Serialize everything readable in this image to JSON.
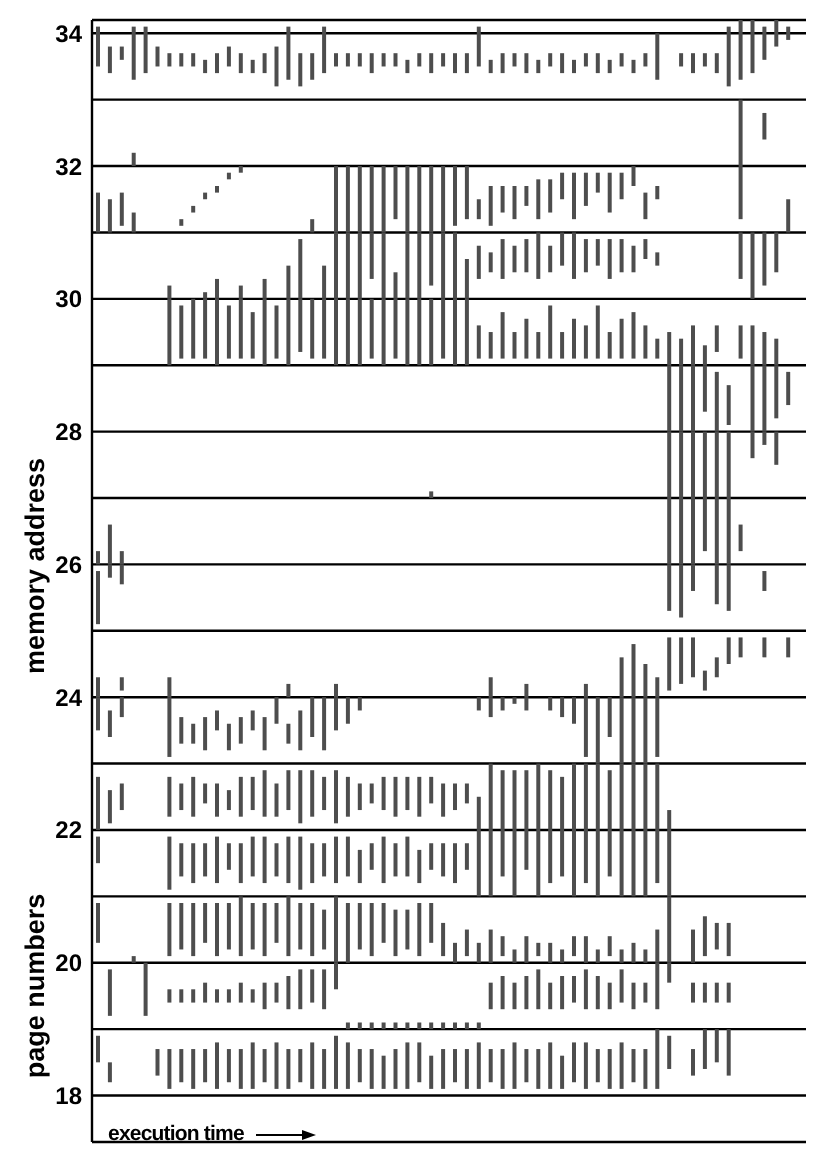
{
  "chart_data": {
    "type": "bar",
    "xlabel": "execution time",
    "ylabel": "memory address",
    "annotations": [
      "page numbers"
    ],
    "color": "#4d4d4d",
    "grid": "y",
    "tick_labels": "y",
    "ylim": [
      17.3,
      34.2
    ],
    "yticks": [
      18,
      {
        "value": 19,
        "label": null
      },
      20,
      {
        "value": 21,
        "label": null
      },
      22,
      {
        "value": 23,
        "label": null
      },
      24,
      {
        "value": 25,
        "label": null
      },
      26,
      {
        "value": 27,
        "label": null
      },
      28,
      {
        "value": 29,
        "label": null
      },
      30,
      {
        "value": 31,
        "label": null
      },
      32,
      {
        "value": 33,
        "label": null
      },
      34
    ],
    "categories": [
      null,
      null,
      null,
      null,
      null,
      null,
      null,
      null,
      null,
      null,
      null,
      null,
      null,
      null,
      null,
      null,
      null,
      null,
      null,
      null,
      null,
      null,
      null,
      null,
      null,
      null,
      null,
      null,
      null,
      null,
      null,
      null,
      null,
      null,
      null,
      null,
      null,
      null,
      null,
      null,
      null,
      null,
      null,
      null,
      null,
      null,
      null,
      null,
      null,
      null,
      null,
      null,
      null,
      null,
      null,
      null,
      null,
      null,
      null,
      null
    ],
    "series": [
      {
        "base": [
          33.5,
          33.4,
          33.6,
          33.3,
          33.4,
          33.5,
          33.5,
          33.5,
          33.5,
          33.4,
          33.4,
          33.5,
          33.4,
          33.4,
          33.4,
          33.2,
          33.3,
          33.2,
          33.3,
          33.4,
          33.5,
          33.5,
          33.5,
          33.4,
          33.5,
          33.5,
          33.4,
          33.5,
          33.4,
          33.5,
          33.4,
          33.4,
          33.5,
          33.4,
          33.4,
          33.5,
          33.4,
          33.4,
          33.5,
          33.4,
          33.4,
          33.5,
          33.4,
          33.4,
          33.5,
          33.4,
          33.5,
          33.3,
          null,
          33.5,
          33.4,
          33.5,
          33.4,
          33.2,
          33.3,
          33.4,
          33.6,
          33.8,
          33.9,
          null
        ],
        "values": [
          0.6,
          0.4,
          0.2,
          0.8,
          0.7,
          0.3,
          0.2,
          0.2,
          0.2,
          0.2,
          0.3,
          0.3,
          0.3,
          0.2,
          0.3,
          0.6,
          0.8,
          0.5,
          0.4,
          0.7,
          0.2,
          0.2,
          0.2,
          0.3,
          0.2,
          0.2,
          0.2,
          0.2,
          0.3,
          0.2,
          0.3,
          0.3,
          0.6,
          0.2,
          0.3,
          0.2,
          0.3,
          0.2,
          0.2,
          0.3,
          0.2,
          0.2,
          0.3,
          0.2,
          0.2,
          0.2,
          0.2,
          0.7,
          null,
          0.2,
          0.3,
          0.2,
          0.3,
          0.9,
          0.9,
          0.8,
          0.5,
          0.4,
          0.2,
          null
        ]
      },
      {
        "base": [
          null,
          null,
          null,
          32.0,
          null,
          null,
          null,
          null,
          null,
          null,
          null,
          null,
          null,
          null,
          null,
          null,
          null,
          null,
          null,
          null,
          null,
          null,
          null,
          null,
          null,
          null,
          null,
          null,
          null,
          null,
          null,
          null,
          null,
          null,
          null,
          null,
          null,
          null,
          null,
          null,
          null,
          null,
          null,
          null,
          null,
          null,
          null,
          null,
          null,
          null,
          null,
          null,
          null,
          null,
          32.0,
          null,
          32.4,
          null,
          null,
          null
        ],
        "values": [
          null,
          null,
          null,
          0.2,
          null,
          null,
          null,
          null,
          null,
          null,
          null,
          null,
          null,
          null,
          null,
          null,
          null,
          null,
          null,
          null,
          null,
          null,
          null,
          null,
          null,
          null,
          null,
          null,
          null,
          null,
          null,
          null,
          null,
          null,
          null,
          null,
          null,
          null,
          null,
          null,
          null,
          null,
          null,
          null,
          null,
          null,
          null,
          null,
          null,
          null,
          null,
          null,
          null,
          null,
          1.0,
          null,
          0.4,
          null,
          null,
          null
        ]
      },
      {
        "base": [
          31.0,
          31.0,
          31.1,
          31.0,
          null,
          null,
          null,
          31.1,
          31.3,
          31.5,
          31.6,
          31.8,
          31.9,
          null,
          null,
          null,
          null,
          null,
          31.0,
          null,
          31.0,
          31.0,
          31.0,
          31.0,
          31.0,
          31.2,
          31.0,
          31.0,
          31.0,
          31.0,
          31.1,
          31.2,
          31.2,
          31.1,
          31.3,
          31.2,
          31.4,
          31.2,
          31.3,
          31.5,
          31.2,
          31.4,
          31.6,
          31.3,
          31.5,
          31.7,
          31.2,
          31.5,
          null,
          null,
          null,
          null,
          null,
          null,
          31.2,
          null,
          null,
          null,
          31.0,
          null
        ],
        "values": [
          0.6,
          0.5,
          0.5,
          0.3,
          null,
          null,
          null,
          0.1,
          0.1,
          0.1,
          0.1,
          0.1,
          0.1,
          null,
          null,
          null,
          null,
          null,
          0.2,
          null,
          1.0,
          1.0,
          1.0,
          1.0,
          1.0,
          0.8,
          1.0,
          1.0,
          1.0,
          1.0,
          0.9,
          0.8,
          0.3,
          0.6,
          0.4,
          0.5,
          0.3,
          0.6,
          0.5,
          0.4,
          0.7,
          0.5,
          0.3,
          0.6,
          0.4,
          0.3,
          0.4,
          0.2,
          null,
          null,
          null,
          null,
          null,
          null,
          0.8,
          null,
          null,
          null,
          0.5,
          null
        ]
      },
      {
        "base": [
          null,
          null,
          null,
          null,
          null,
          null,
          30.0,
          null,
          null,
          30.0,
          30.0,
          null,
          30.0,
          null,
          30.0,
          null,
          30.0,
          30.0,
          null,
          30.0,
          30.0,
          30.0,
          30.0,
          30.3,
          30.0,
          30.0,
          30.0,
          30.0,
          30.2,
          30.0,
          30.0,
          30.0,
          30.3,
          30.4,
          30.3,
          30.4,
          30.4,
          30.3,
          30.4,
          30.5,
          30.3,
          30.4,
          30.5,
          30.3,
          30.4,
          30.4,
          30.6,
          30.5,
          null,
          null,
          null,
          null,
          null,
          null,
          30.3,
          30.0,
          30.2,
          30.4,
          null,
          null
        ],
        "values": [
          null,
          null,
          null,
          null,
          null,
          null,
          0.2,
          null,
          null,
          0.1,
          0.3,
          null,
          0.2,
          null,
          0.3,
          null,
          0.5,
          0.9,
          null,
          0.5,
          1.0,
          1.0,
          1.0,
          0.7,
          1.0,
          0.4,
          1.0,
          1.0,
          0.8,
          1.0,
          1.0,
          0.6,
          0.5,
          0.3,
          0.6,
          0.4,
          0.5,
          0.7,
          0.4,
          0.5,
          0.7,
          0.5,
          0.4,
          0.6,
          0.5,
          0.4,
          0.3,
          0.2,
          null,
          null,
          null,
          null,
          null,
          null,
          0.7,
          1.0,
          0.8,
          0.6,
          null,
          null
        ]
      },
      {
        "base": [
          null,
          null,
          null,
          null,
          null,
          null,
          29.0,
          29.1,
          29.1,
          29.1,
          29.0,
          29.1,
          29.1,
          29.1,
          29.0,
          29.1,
          29.0,
          29.2,
          29.1,
          29.1,
          29.0,
          29.0,
          29.0,
          29.1,
          29.0,
          29.1,
          29.0,
          29.0,
          29.0,
          29.1,
          29.0,
          29.0,
          29.1,
          29.1,
          29.1,
          29.1,
          29.1,
          29.1,
          29.1,
          29.1,
          29.1,
          29.1,
          29.1,
          29.1,
          29.1,
          29.1,
          29.1,
          29.1,
          29.0,
          29.0,
          29.0,
          29.0,
          29.2,
          null,
          29.1,
          29.0,
          29.0,
          29.0,
          null,
          null
        ],
        "values": [
          null,
          null,
          null,
          null,
          null,
          null,
          1.0,
          0.8,
          0.9,
          0.9,
          1.0,
          0.8,
          0.9,
          0.7,
          1.0,
          0.8,
          1.0,
          0.8,
          0.9,
          0.9,
          1.0,
          1.0,
          1.0,
          0.9,
          1.0,
          0.9,
          1.0,
          1.0,
          1.0,
          0.9,
          1.0,
          1.0,
          0.5,
          0.4,
          0.7,
          0.4,
          0.6,
          0.4,
          0.8,
          0.4,
          0.6,
          0.5,
          0.8,
          0.4,
          0.6,
          0.7,
          0.5,
          0.3,
          0.5,
          0.4,
          0.6,
          0.3,
          0.4,
          null,
          0.5,
          0.6,
          0.5,
          0.4,
          null,
          null
        ]
      },
      {
        "base": [
          null,
          null,
          null,
          null,
          null,
          null,
          null,
          null,
          null,
          null,
          null,
          null,
          null,
          null,
          null,
          null,
          null,
          null,
          null,
          null,
          null,
          null,
          null,
          null,
          null,
          null,
          null,
          null,
          null,
          null,
          null,
          null,
          null,
          null,
          null,
          null,
          null,
          null,
          null,
          null,
          null,
          null,
          null,
          null,
          null,
          null,
          null,
          null,
          28.0,
          28.0,
          28.0,
          28.3,
          28.0,
          28.1,
          null,
          28.0,
          28.0,
          28.2,
          28.4,
          null
        ],
        "values": [
          null,
          null,
          null,
          null,
          null,
          null,
          null,
          null,
          null,
          null,
          null,
          null,
          null,
          null,
          null,
          null,
          null,
          null,
          null,
          null,
          null,
          null,
          null,
          null,
          null,
          null,
          null,
          null,
          null,
          null,
          null,
          null,
          null,
          null,
          null,
          null,
          null,
          null,
          null,
          null,
          null,
          null,
          null,
          null,
          null,
          null,
          null,
          null,
          1.0,
          1.0,
          1.0,
          0.7,
          0.9,
          0.6,
          null,
          1.0,
          1.0,
          0.8,
          0.5,
          null
        ]
      },
      {
        "base": [
          null,
          null,
          null,
          null,
          null,
          null,
          null,
          null,
          null,
          null,
          null,
          null,
          null,
          null,
          null,
          null,
          null,
          null,
          null,
          null,
          null,
          null,
          null,
          null,
          null,
          null,
          null,
          null,
          27.0,
          null,
          null,
          null,
          null,
          null,
          null,
          null,
          null,
          null,
          null,
          null,
          null,
          null,
          null,
          null,
          null,
          null,
          null,
          null,
          27.0,
          27.0,
          27.0,
          27.0,
          27.0,
          27.0,
          null,
          27.6,
          27.8,
          27.5,
          null,
          null
        ],
        "values": [
          null,
          null,
          null,
          null,
          null,
          null,
          null,
          null,
          null,
          null,
          null,
          null,
          null,
          null,
          null,
          null,
          null,
          null,
          null,
          null,
          null,
          null,
          null,
          null,
          null,
          null,
          null,
          null,
          0.1,
          null,
          null,
          null,
          null,
          null,
          null,
          null,
          null,
          null,
          null,
          null,
          null,
          null,
          null,
          null,
          null,
          null,
          null,
          null,
          1.0,
          1.0,
          1.0,
          1.0,
          1.0,
          1.0,
          null,
          0.4,
          0.2,
          0.5,
          null,
          null
        ]
      },
      {
        "base": [
          26.0,
          26.0,
          26.0,
          null,
          null,
          null,
          null,
          null,
          null,
          null,
          null,
          null,
          null,
          null,
          null,
          null,
          null,
          null,
          null,
          null,
          null,
          null,
          null,
          null,
          null,
          null,
          null,
          null,
          null,
          null,
          null,
          null,
          null,
          null,
          null,
          null,
          null,
          null,
          null,
          null,
          null,
          null,
          null,
          null,
          null,
          null,
          null,
          null,
          26.0,
          26.0,
          26.0,
          26.2,
          26.0,
          26.0,
          26.2,
          null,
          null,
          null,
          null,
          null
        ],
        "values": [
          0.2,
          0.6,
          0.2,
          null,
          null,
          null,
          null,
          null,
          null,
          null,
          null,
          null,
          null,
          null,
          null,
          null,
          null,
          null,
          null,
          null,
          null,
          null,
          null,
          null,
          null,
          null,
          null,
          null,
          null,
          null,
          null,
          null,
          null,
          null,
          null,
          null,
          null,
          null,
          null,
          null,
          null,
          null,
          null,
          null,
          null,
          null,
          null,
          null,
          1.0,
          1.0,
          1.0,
          0.8,
          1.0,
          1.0,
          0.4,
          null,
          null,
          null,
          null,
          null
        ]
      },
      {
        "base": [
          25.1,
          25.8,
          25.7,
          null,
          null,
          null,
          null,
          null,
          null,
          null,
          null,
          null,
          null,
          null,
          null,
          null,
          null,
          null,
          null,
          null,
          null,
          null,
          null,
          null,
          null,
          null,
          null,
          null,
          null,
          null,
          null,
          null,
          null,
          null,
          null,
          null,
          null,
          null,
          null,
          null,
          null,
          null,
          null,
          null,
          null,
          null,
          null,
          null,
          25.3,
          25.2,
          25.6,
          null,
          25.4,
          25.3,
          null,
          null,
          25.6,
          null,
          null,
          null
        ],
        "values": [
          0.8,
          0.2,
          0.3,
          null,
          null,
          null,
          null,
          null,
          null,
          null,
          null,
          null,
          null,
          null,
          null,
          null,
          null,
          null,
          null,
          null,
          null,
          null,
          null,
          null,
          null,
          null,
          null,
          null,
          null,
          null,
          null,
          null,
          null,
          null,
          null,
          null,
          null,
          null,
          null,
          null,
          null,
          null,
          null,
          null,
          null,
          null,
          null,
          null,
          0.7,
          0.8,
          0.4,
          null,
          0.6,
          0.7,
          null,
          null,
          0.3,
          null,
          null,
          null
        ]
      },
      {
        "base": [
          24.0,
          null,
          24.1,
          null,
          null,
          null,
          24.0,
          null,
          null,
          null,
          null,
          null,
          null,
          null,
          null,
          null,
          24.0,
          null,
          null,
          null,
          24.0,
          null,
          null,
          null,
          null,
          null,
          null,
          null,
          null,
          null,
          null,
          null,
          null,
          24.0,
          null,
          null,
          24.0,
          null,
          null,
          null,
          null,
          24.0,
          null,
          null,
          24.0,
          24.0,
          24.0,
          24.0,
          24.1,
          24.2,
          24.3,
          24.1,
          24.3,
          24.5,
          24.6,
          null,
          24.6,
          null,
          24.6,
          null
        ],
        "values": [
          0.3,
          null,
          0.2,
          null,
          null,
          null,
          0.3,
          null,
          null,
          null,
          null,
          null,
          null,
          null,
          null,
          null,
          0.2,
          null,
          null,
          null,
          0.2,
          null,
          null,
          null,
          null,
          null,
          null,
          null,
          null,
          null,
          null,
          null,
          null,
          0.3,
          null,
          null,
          0.2,
          null,
          null,
          null,
          null,
          0.2,
          null,
          null,
          0.6,
          0.8,
          0.5,
          0.3,
          0.8,
          0.7,
          0.6,
          0.3,
          0.3,
          0.4,
          0.3,
          null,
          0.3,
          null,
          0.3,
          null
        ]
      },
      {
        "base": [
          23.5,
          23.4,
          23.7,
          null,
          null,
          null,
          23.1,
          23.3,
          23.3,
          23.2,
          23.5,
          23.2,
          23.3,
          23.5,
          23.2,
          23.6,
          23.3,
          23.2,
          23.4,
          23.2,
          23.5,
          23.6,
          23.8,
          null,
          null,
          null,
          null,
          null,
          null,
          null,
          null,
          null,
          23.8,
          23.7,
          23.8,
          23.9,
          23.8,
          null,
          23.8,
          23.7,
          23.6,
          23.1,
          23.0,
          23.4,
          23.0,
          23.0,
          23.0,
          23.1,
          null,
          null,
          null,
          null,
          null,
          null,
          null,
          null,
          null,
          null,
          null,
          null
        ],
        "values": [
          0.5,
          0.4,
          0.3,
          null,
          null,
          null,
          0.9,
          0.4,
          0.3,
          0.5,
          0.3,
          0.4,
          0.4,
          0.3,
          0.5,
          0.4,
          0.3,
          0.6,
          0.6,
          0.8,
          0.5,
          0.4,
          0.2,
          null,
          null,
          null,
          null,
          null,
          null,
          null,
          null,
          null,
          0.2,
          0.3,
          0.2,
          0.1,
          0.2,
          null,
          0.2,
          0.3,
          0.4,
          0.9,
          1.0,
          0.6,
          1.0,
          1.0,
          1.0,
          0.9,
          null,
          null,
          null,
          null,
          null,
          null,
          null,
          null,
          null,
          null,
          null,
          null
        ]
      },
      {
        "base": [
          22.0,
          22.1,
          22.3,
          null,
          null,
          null,
          22.2,
          22.3,
          22.2,
          22.4,
          22.2,
          22.3,
          22.2,
          22.3,
          22.2,
          22.2,
          22.3,
          22.1,
          22.2,
          22.3,
          22.1,
          22.2,
          22.3,
          22.4,
          22.3,
          22.2,
          22.3,
          22.2,
          22.4,
          22.2,
          22.3,
          22.4,
          22.0,
          22.0,
          22.0,
          22.0,
          22.0,
          22.0,
          22.0,
          22.0,
          22.0,
          22.0,
          22.0,
          22.0,
          22.0,
          22.0,
          22.0,
          22.0,
          22.0,
          null,
          null,
          null,
          null,
          null,
          null,
          null,
          null,
          null,
          null,
          null
        ],
        "values": [
          0.8,
          0.5,
          0.4,
          null,
          null,
          null,
          0.6,
          0.4,
          0.6,
          0.3,
          0.5,
          0.3,
          0.6,
          0.5,
          0.7,
          0.5,
          0.6,
          0.8,
          0.7,
          0.5,
          0.8,
          0.6,
          0.4,
          0.3,
          0.5,
          0.6,
          0.5,
          0.6,
          0.4,
          0.5,
          0.4,
          0.3,
          0.5,
          1.0,
          0.9,
          0.9,
          0.9,
          1.0,
          0.9,
          0.8,
          1.0,
          1.0,
          1.0,
          0.9,
          1.0,
          1.0,
          1.0,
          1.0,
          0.3,
          null,
          null,
          null,
          null,
          null,
          null,
          null,
          null,
          null,
          null,
          null
        ]
      },
      {
        "base": [
          21.5,
          null,
          null,
          null,
          null,
          null,
          21.1,
          21.3,
          21.2,
          21.3,
          21.2,
          21.4,
          21.2,
          21.3,
          21.2,
          21.3,
          21.2,
          21.1,
          21.2,
          21.3,
          21.2,
          21.3,
          21.2,
          21.4,
          21.2,
          21.3,
          21.3,
          21.2,
          21.4,
          21.3,
          21.2,
          21.4,
          21.0,
          21.0,
          21.3,
          21.0,
          21.4,
          21.0,
          21.2,
          21.3,
          21.0,
          21.2,
          21.0,
          21.3,
          21.0,
          21.0,
          21.0,
          21.2,
          21.0,
          null,
          null,
          null,
          null,
          null,
          null,
          null,
          null,
          null,
          null,
          null
        ],
        "values": [
          0.4,
          null,
          null,
          null,
          null,
          null,
          0.8,
          0.5,
          0.6,
          0.5,
          0.7,
          0.4,
          0.6,
          0.6,
          0.7,
          0.5,
          0.7,
          0.8,
          0.6,
          0.5,
          0.7,
          0.6,
          0.5,
          0.4,
          0.7,
          0.5,
          0.6,
          0.5,
          0.4,
          0.5,
          0.6,
          0.4,
          1.0,
          1.0,
          0.7,
          1.0,
          0.6,
          1.0,
          0.8,
          0.7,
          1.0,
          0.8,
          1.0,
          0.7,
          1.0,
          1.0,
          1.0,
          0.8,
          1.0,
          null,
          null,
          null,
          null,
          null,
          null,
          null,
          null,
          null,
          null,
          null
        ]
      },
      {
        "base": [
          20.3,
          null,
          null,
          20.0,
          null,
          null,
          20.1,
          20.2,
          20.1,
          20.3,
          20.1,
          20.2,
          20.1,
          20.2,
          20.1,
          20.3,
          20.1,
          20.2,
          20.1,
          20.2,
          20.0,
          20.0,
          20.2,
          20.1,
          20.3,
          20.1,
          20.2,
          20.1,
          20.3,
          20.1,
          20.0,
          20.1,
          20.0,
          20.0,
          20.1,
          20.0,
          20.0,
          20.1,
          20.0,
          20.0,
          20.1,
          20.0,
          20.0,
          20.1,
          20.0,
          20.0,
          20.0,
          20.0,
          20.0,
          null,
          20.0,
          20.1,
          20.2,
          20.1,
          null,
          null,
          null,
          null,
          null,
          null
        ],
        "values": [
          0.6,
          null,
          null,
          0.1,
          null,
          null,
          0.8,
          0.7,
          0.8,
          0.6,
          0.8,
          0.7,
          0.9,
          0.7,
          0.8,
          0.6,
          0.9,
          0.7,
          0.8,
          0.6,
          1.0,
          0.9,
          0.7,
          0.8,
          0.6,
          0.7,
          0.6,
          0.8,
          0.6,
          0.5,
          0.3,
          0.4,
          0.3,
          0.5,
          0.3,
          0.2,
          0.4,
          0.2,
          0.3,
          0.2,
          0.3,
          0.4,
          0.2,
          0.3,
          0.2,
          0.3,
          0.2,
          0.5,
          1.0,
          null,
          0.5,
          0.6,
          0.4,
          0.5,
          null,
          null,
          null,
          null,
          null,
          null
        ]
      },
      {
        "base": [
          null,
          19.2,
          null,
          null,
          19.2,
          null,
          19.4,
          19.4,
          19.4,
          19.4,
          19.4,
          19.4,
          19.4,
          19.4,
          19.3,
          19.4,
          19.3,
          19.3,
          19.4,
          19.3,
          19.6,
          19.0,
          19.0,
          19.0,
          19.0,
          19.0,
          19.0,
          19.0,
          19.0,
          19.0,
          19.0,
          19.0,
          19.0,
          19.3,
          19.3,
          19.3,
          19.3,
          19.3,
          19.3,
          19.3,
          19.4,
          19.3,
          19.3,
          19.3,
          19.4,
          19.3,
          19.4,
          19.3,
          19.7,
          null,
          19.4,
          19.4,
          19.4,
          19.4,
          null,
          null,
          null,
          null,
          null,
          null
        ],
        "values": [
          null,
          0.7,
          null,
          null,
          0.8,
          null,
          0.2,
          0.2,
          0.2,
          0.3,
          0.2,
          0.2,
          0.3,
          0.2,
          0.4,
          0.3,
          0.5,
          0.6,
          0.5,
          0.6,
          0.4,
          0.1,
          0.1,
          0.1,
          0.1,
          0.1,
          0.1,
          0.1,
          0.1,
          0.1,
          0.1,
          0.1,
          0.1,
          0.4,
          0.5,
          0.4,
          0.5,
          0.6,
          0.4,
          0.5,
          0.4,
          0.6,
          0.5,
          0.4,
          0.5,
          0.4,
          0.3,
          0.7,
          0.3,
          null,
          0.3,
          0.3,
          0.3,
          0.3,
          null,
          null,
          null,
          null,
          null,
          null
        ]
      },
      {
        "base": [
          18.5,
          18.2,
          null,
          null,
          null,
          18.3,
          18.1,
          18.2,
          18.1,
          18.2,
          18.1,
          18.2,
          18.1,
          18.1,
          18.2,
          18.1,
          18.1,
          18.2,
          18.1,
          18.1,
          18.1,
          18.1,
          18.2,
          18.1,
          18.1,
          18.1,
          18.1,
          18.2,
          18.1,
          18.1,
          18.2,
          18.1,
          18.1,
          18.2,
          18.1,
          18.1,
          18.2,
          18.1,
          18.1,
          18.1,
          18.2,
          18.1,
          18.2,
          18.1,
          18.1,
          18.2,
          18.1,
          18.1,
          18.4,
          null,
          18.3,
          18.4,
          18.5,
          18.3,
          null,
          null,
          null,
          null,
          null,
          null
        ],
        "values": [
          0.4,
          0.3,
          null,
          null,
          null,
          0.4,
          0.6,
          0.5,
          0.6,
          0.5,
          0.7,
          0.5,
          0.6,
          0.7,
          0.5,
          0.7,
          0.6,
          0.5,
          0.7,
          0.6,
          0.8,
          0.7,
          0.5,
          0.6,
          0.5,
          0.6,
          0.7,
          0.6,
          0.5,
          0.6,
          0.5,
          0.6,
          0.7,
          0.5,
          0.6,
          0.7,
          0.5,
          0.6,
          0.7,
          0.5,
          0.6,
          0.7,
          0.5,
          0.6,
          0.7,
          0.5,
          0.6,
          0.9,
          0.5,
          null,
          0.4,
          0.6,
          0.5,
          0.7,
          null,
          null,
          null,
          null,
          null,
          null
        ]
      }
    ]
  }
}
